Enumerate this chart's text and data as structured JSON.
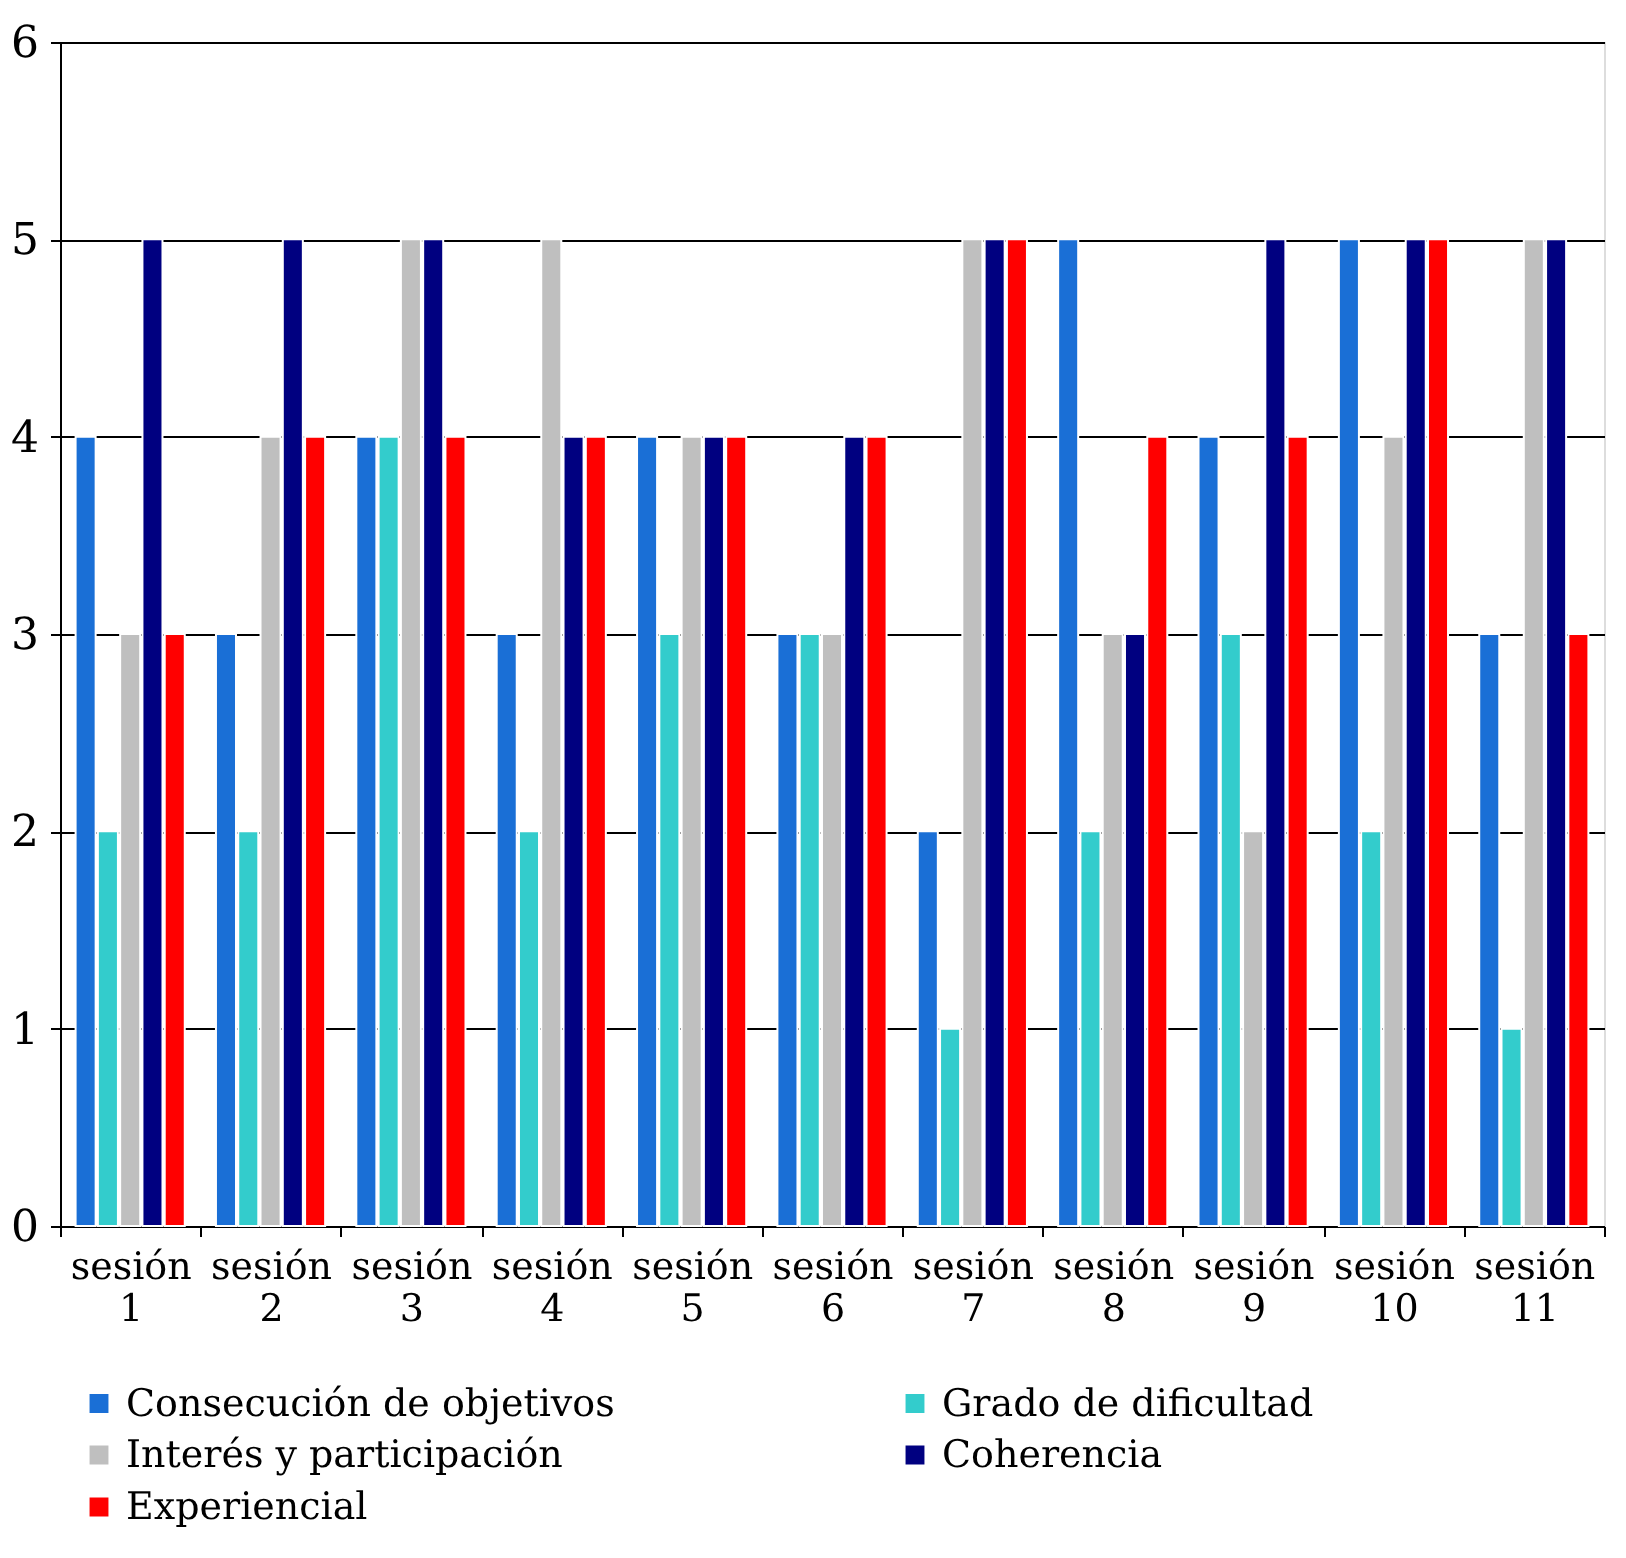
{
  "chart_data": {
    "type": "bar",
    "categories": [
      "sesión 1",
      "sesión 2",
      "sesión 3",
      "sesión 4",
      "sesión 5",
      "sesión 6",
      "sesión 7",
      "sesión 8",
      "sesión 9",
      "sesión 10",
      "sesión 11"
    ],
    "series": [
      {
        "name": "Consecución de objetivos",
        "color": "#1a6fd6",
        "values": [
          4,
          3,
          4,
          3,
          4,
          3,
          2,
          5,
          4,
          5,
          3
        ]
      },
      {
        "name": "Grado de dificultad",
        "color": "#33cccc",
        "values": [
          2,
          2,
          4,
          2,
          3,
          3,
          1,
          2,
          3,
          2,
          1
        ]
      },
      {
        "name": "Interés y participación",
        "color": "#bfbfbf",
        "values": [
          3,
          4,
          5,
          5,
          4,
          3,
          5,
          3,
          2,
          4,
          5
        ]
      },
      {
        "name": "Coherencia",
        "color": "#000080",
        "values": [
          5,
          5,
          5,
          4,
          4,
          4,
          5,
          3,
          5,
          5,
          5
        ]
      },
      {
        "name": "Experiencial",
        "color": "#ff0000",
        "values": [
          3,
          4,
          4,
          4,
          4,
          4,
          5,
          4,
          4,
          5,
          3
        ]
      }
    ],
    "ylim": [
      0,
      6
    ],
    "yticks": [
      0,
      1,
      2,
      3,
      4,
      5,
      6
    ],
    "grid": "y",
    "legend": "bottom"
  }
}
